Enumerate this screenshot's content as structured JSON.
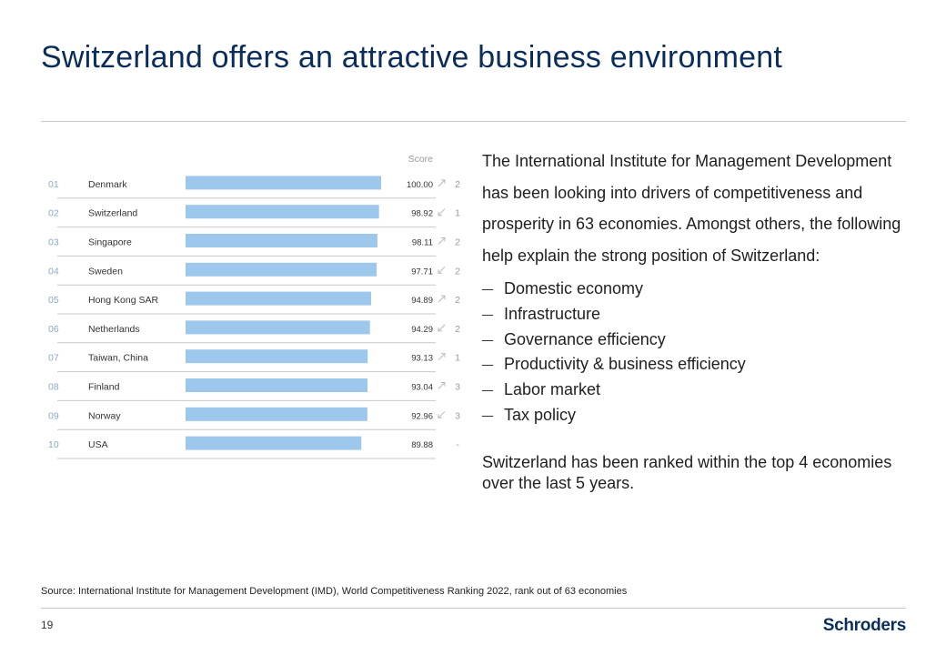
{
  "title": "Switzerland offers an attractive business environment",
  "chart_data": {
    "type": "bar",
    "score_header": "Score",
    "ranks": [
      "01",
      "02",
      "03",
      "04",
      "05",
      "06",
      "07",
      "08",
      "09",
      "10"
    ],
    "categories": [
      "Denmark",
      "Switzerland",
      "Singapore",
      "Sweden",
      "Hong Kong SAR",
      "Netherlands",
      "Taiwan, China",
      "Finland",
      "Norway",
      "USA"
    ],
    "values": [
      100.0,
      98.92,
      98.11,
      97.71,
      94.89,
      94.29,
      93.13,
      93.04,
      92.96,
      89.88
    ],
    "value_labels": [
      "100.00",
      "98.92",
      "98.11",
      "97.71",
      "94.89",
      "94.29",
      "93.13",
      "93.04",
      "92.96",
      "89.88"
    ],
    "trend": [
      "up",
      "down",
      "up",
      "down",
      "up",
      "down",
      "up",
      "up",
      "down",
      "none"
    ],
    "rank_change": [
      "2",
      "1",
      "2",
      "2",
      "2",
      "2",
      "1",
      "3",
      "3",
      "-"
    ],
    "bar_color": "#9dc8ec",
    "xlim": [
      0,
      100
    ]
  },
  "text": {
    "intro": "The International Institute for Management Development has been looking into drivers of competitiveness and prosperity in 63 economies. Amongst others, the following help explain the strong position of Switzerland:",
    "bullets": [
      "Domestic economy",
      "Infrastructure",
      "Governance efficiency",
      "Productivity &  business efficiency",
      "Labor market",
      "Tax policy"
    ],
    "closing": "Switzerland has been ranked within the top 4 economies over the last 5 years."
  },
  "source": "Source: International Institute for Management Development (IMD), World Competitiveness Ranking 2022, rank out of 63 economies",
  "page_number": "19",
  "logo": "Schroders"
}
